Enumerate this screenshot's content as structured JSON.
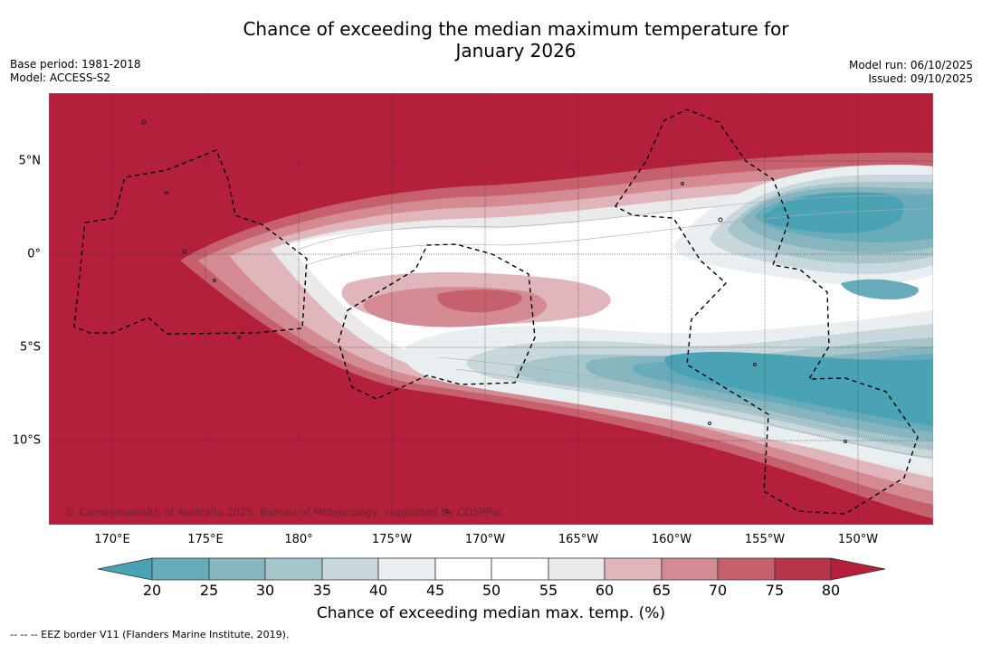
{
  "title_line1": "Chance of exceeding the median maximum temperature for",
  "title_line2": "January 2026",
  "meta": {
    "base_period": "Base period: 1981-2018",
    "model": "Model: ACCESS-S2",
    "model_run": "Model run: 06/10/2025",
    "issued": "Issued: 09/10/2025"
  },
  "map": {
    "lon_labels": [
      "170°E",
      "175°E",
      "180°",
      "175°W",
      "170°W",
      "165°W",
      "160°W",
      "155°W",
      "150°W"
    ],
    "lat_labels": [
      "5°N",
      "0°",
      "5°S",
      "10°S"
    ],
    "lon_range_deg": [
      166.5,
      213.8
    ],
    "lat_range_deg": [
      -14.4,
      8.7
    ],
    "lon_ticks_deg": [
      170,
      175,
      180,
      185,
      190,
      195,
      200,
      205,
      210
    ],
    "lat_ticks_deg": [
      5,
      0,
      -5,
      -10
    ],
    "copyright": "© Commonwealth of Australia 2025, Bureau of Meteorology, supported by COSPPac"
  },
  "colorbar": {
    "labels": [
      "20",
      "25",
      "30",
      "35",
      "40",
      "45",
      "50",
      "55",
      "60",
      "65",
      "70",
      "75",
      "80"
    ],
    "colors": [
      "#4aa3b5",
      "#68acbb",
      "#86b5c0",
      "#a7c6cb",
      "#c9d8dc",
      "#e9eef0",
      "#ffffff",
      "#ffffff",
      "#eaeaea",
      "#e0b6bc",
      "#d38a93",
      "#c6606c",
      "#b7354a",
      "#b41f3b"
    ],
    "title": "Chance of exceeding median max. temp. (%)"
  },
  "footer": "--  --  -- EEZ border V11 (Flanders Marine Institute, 2019)."
}
